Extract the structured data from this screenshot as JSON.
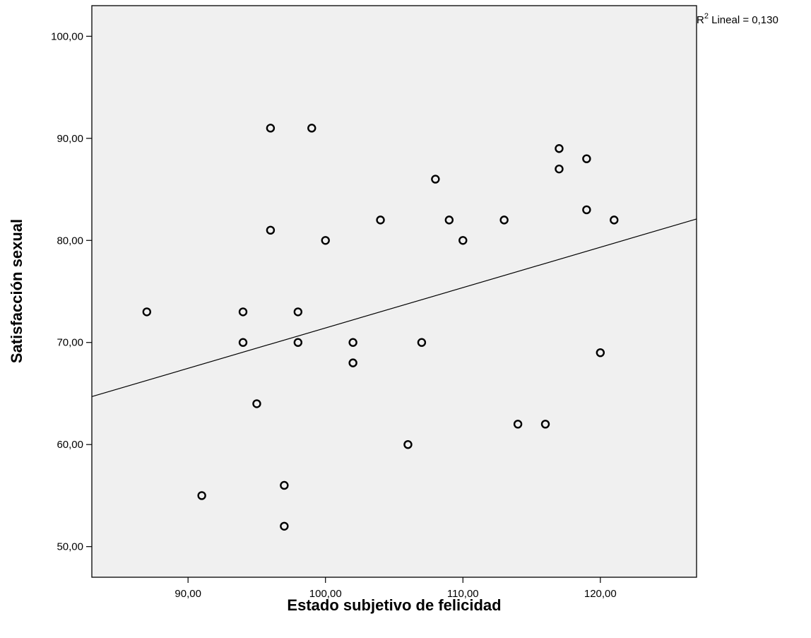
{
  "chart_data": {
    "type": "scatter",
    "title": "",
    "xlabel": "Estado subjetivo de felicidad",
    "ylabel": "Satisfacción sexual",
    "xlim": [
      83,
      127
    ],
    "ylim": [
      47,
      103
    ],
    "x_ticks": [
      90,
      100,
      110,
      120
    ],
    "x_tick_labels": [
      "90,00",
      "100,00",
      "110,00",
      "120,00"
    ],
    "y_ticks": [
      50,
      60,
      70,
      80,
      90,
      100
    ],
    "y_tick_labels": [
      "50,00",
      "60,00",
      "70,00",
      "80,00",
      "90,00",
      "100,00"
    ],
    "grid": false,
    "background_color": "#f0f0f0",
    "marker_color": "#000000",
    "fit_line": {
      "type": "linear",
      "label_prefix": "R",
      "label_sup": "2",
      "label_text": " Lineal = 0,130",
      "points": [
        [
          83,
          64.7
        ],
        [
          127,
          82.1
        ]
      ]
    },
    "points": [
      {
        "x": 87,
        "y": 73
      },
      {
        "x": 91,
        "y": 55
      },
      {
        "x": 94,
        "y": 73
      },
      {
        "x": 94,
        "y": 70
      },
      {
        "x": 95,
        "y": 64
      },
      {
        "x": 96,
        "y": 91
      },
      {
        "x": 96,
        "y": 81
      },
      {
        "x": 97,
        "y": 56
      },
      {
        "x": 97,
        "y": 52
      },
      {
        "x": 98,
        "y": 73
      },
      {
        "x": 98,
        "y": 70
      },
      {
        "x": 99,
        "y": 91
      },
      {
        "x": 100,
        "y": 80
      },
      {
        "x": 102,
        "y": 70
      },
      {
        "x": 102,
        "y": 68
      },
      {
        "x": 104,
        "y": 82
      },
      {
        "x": 106,
        "y": 60
      },
      {
        "x": 107,
        "y": 70
      },
      {
        "x": 108,
        "y": 86
      },
      {
        "x": 109,
        "y": 82
      },
      {
        "x": 110,
        "y": 80
      },
      {
        "x": 113,
        "y": 82
      },
      {
        "x": 114,
        "y": 62
      },
      {
        "x": 116,
        "y": 62
      },
      {
        "x": 117,
        "y": 89
      },
      {
        "x": 117,
        "y": 87
      },
      {
        "x": 119,
        "y": 88
      },
      {
        "x": 119,
        "y": 83
      },
      {
        "x": 120,
        "y": 69
      },
      {
        "x": 121,
        "y": 82
      }
    ]
  }
}
